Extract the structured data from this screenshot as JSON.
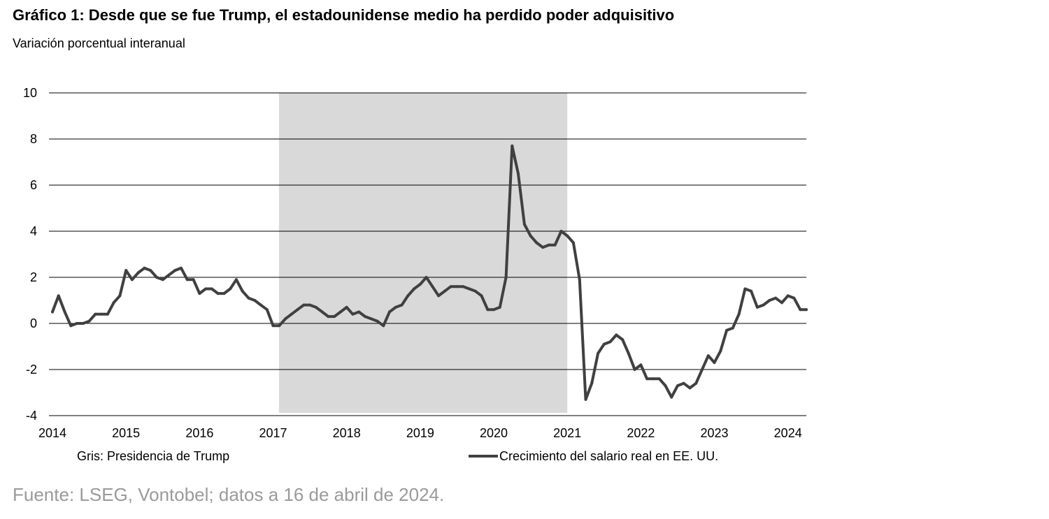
{
  "title": "Gráfico 1: Desde que se fue Trump, el estadounidense medio ha perdido poder adquisitivo",
  "subtitle": "Variación porcentual interanual",
  "source": "Fuente: LSEG, Vontobel; datos a 16 de abril de 2024.",
  "legend": {
    "shade_note": "Gris: Presidencia de Trump",
    "series_label": "Crecimiento del salario real en EE. UU."
  },
  "colors": {
    "line": "#404040",
    "shade": "#d9d9d9",
    "grid": "#000000",
    "source_text": "#9a9a9a"
  },
  "chart_data": {
    "type": "line",
    "title": "Gráfico 1: Desde que se fue Trump, el estadounidense medio ha perdido poder adquisitivo",
    "ylabel": "Variación porcentual interanual",
    "xlabel": "",
    "xlim": [
      2014.0,
      2024.25
    ],
    "ylim": [
      -4,
      10
    ],
    "yticks": [
      "-4",
      "-2",
      "0",
      "2",
      "4",
      "6",
      "8",
      "10"
    ],
    "xticks": [
      "2014",
      "2015",
      "2016",
      "2017",
      "2018",
      "2019",
      "2020",
      "2021",
      "2022",
      "2023",
      "2024"
    ],
    "grid": "horizontal",
    "shaded_region": {
      "label": "Gris: Presidencia de Trump",
      "x_start": 2017.08,
      "x_end": 2021.0
    },
    "series": [
      {
        "name": "Crecimiento del salario real en EE. UU.",
        "x": [
          2014.0,
          2014.083,
          2014.167,
          2014.25,
          2014.333,
          2014.417,
          2014.5,
          2014.583,
          2014.667,
          2014.75,
          2014.833,
          2014.917,
          2015.0,
          2015.083,
          2015.167,
          2015.25,
          2015.333,
          2015.417,
          2015.5,
          2015.583,
          2015.667,
          2015.75,
          2015.833,
          2015.917,
          2016.0,
          2016.083,
          2016.167,
          2016.25,
          2016.333,
          2016.417,
          2016.5,
          2016.583,
          2016.667,
          2016.75,
          2016.833,
          2016.917,
          2017.0,
          2017.083,
          2017.167,
          2017.25,
          2017.333,
          2017.417,
          2017.5,
          2017.583,
          2017.667,
          2017.75,
          2017.833,
          2017.917,
          2018.0,
          2018.083,
          2018.167,
          2018.25,
          2018.333,
          2018.417,
          2018.5,
          2018.583,
          2018.667,
          2018.75,
          2018.833,
          2018.917,
          2019.0,
          2019.083,
          2019.167,
          2019.25,
          2019.333,
          2019.417,
          2019.5,
          2019.583,
          2019.667,
          2019.75,
          2019.833,
          2019.917,
          2020.0,
          2020.083,
          2020.167,
          2020.25,
          2020.333,
          2020.417,
          2020.5,
          2020.583,
          2020.667,
          2020.75,
          2020.833,
          2020.917,
          2021.0,
          2021.083,
          2021.167,
          2021.25,
          2021.333,
          2021.417,
          2021.5,
          2021.583,
          2021.667,
          2021.75,
          2021.833,
          2021.917,
          2022.0,
          2022.083,
          2022.167,
          2022.25,
          2022.333,
          2022.417,
          2022.5,
          2022.583,
          2022.667,
          2022.75,
          2022.833,
          2022.917,
          2023.0,
          2023.083,
          2023.167,
          2023.25,
          2023.333,
          2023.417,
          2023.5,
          2023.583,
          2023.667,
          2023.75,
          2023.833,
          2023.917,
          2024.0,
          2024.083,
          2024.167,
          2024.25
        ],
        "values": [
          0.5,
          1.2,
          0.5,
          -0.1,
          0.0,
          0.0,
          0.1,
          0.4,
          0.4,
          0.4,
          0.9,
          1.2,
          2.3,
          1.9,
          2.2,
          2.4,
          2.3,
          2.0,
          1.9,
          2.1,
          2.3,
          2.4,
          1.9,
          1.9,
          1.3,
          1.5,
          1.5,
          1.3,
          1.3,
          1.5,
          1.9,
          1.4,
          1.1,
          1.0,
          0.8,
          0.6,
          -0.1,
          -0.1,
          0.2,
          0.4,
          0.6,
          0.8,
          0.8,
          0.7,
          0.5,
          0.3,
          0.3,
          0.5,
          0.7,
          0.4,
          0.5,
          0.3,
          0.2,
          0.1,
          -0.1,
          0.5,
          0.7,
          0.8,
          1.2,
          1.5,
          1.7,
          2.0,
          1.6,
          1.2,
          1.4,
          1.6,
          1.6,
          1.6,
          1.5,
          1.4,
          1.2,
          0.6,
          0.6,
          0.7,
          2.0,
          7.7,
          6.5,
          4.3,
          3.8,
          3.5,
          3.3,
          3.4,
          3.4,
          4.0,
          3.8,
          3.5,
          1.9,
          -3.3,
          -2.6,
          -1.3,
          -0.9,
          -0.8,
          -0.5,
          -0.7,
          -1.3,
          -2.0,
          -1.8,
          -2.4,
          -2.4,
          -2.4,
          -2.7,
          -3.2,
          -2.7,
          -2.6,
          -2.8,
          -2.6,
          -2.0,
          -1.4,
          -1.7,
          -1.2,
          -0.3,
          -0.2,
          0.4,
          1.5,
          1.4,
          0.7,
          0.8,
          1.0,
          1.1,
          0.9,
          1.2,
          1.1,
          0.6,
          0.6
        ]
      }
    ]
  }
}
